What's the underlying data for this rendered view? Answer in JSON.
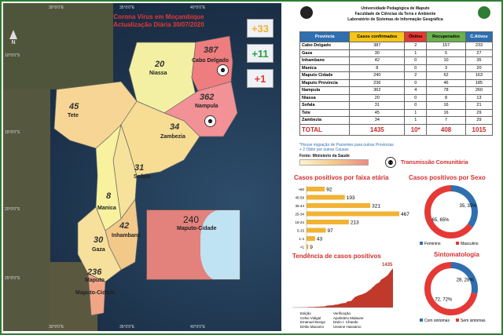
{
  "map": {
    "title_line1": "Corona Vírus em Moçambique",
    "title_line2": "Actualização Diária 30/07/2020",
    "changes": [
      {
        "value": "+33",
        "color": "#f2b233"
      },
      {
        "value": "+11",
        "color": "#2e9e44"
      },
      {
        "value": "+1",
        "color": "#e53935"
      }
    ],
    "provinces": [
      {
        "name": "Niassa",
        "count": "20",
        "color": "#f3f0a3"
      },
      {
        "name": "Cabo Delgado",
        "count": "387",
        "color": "#ef7d7f"
      },
      {
        "name": "Nampula",
        "count": "362",
        "color": "#f29196"
      },
      {
        "name": "Tete",
        "count": "45",
        "color": "#f7d594"
      },
      {
        "name": "Zambezia",
        "count": "34",
        "color": "#f7dd94"
      },
      {
        "name": "Sofala",
        "count": "31",
        "color": "#f6e29b"
      },
      {
        "name": "Manica",
        "count": "8",
        "color": "#f8f29f"
      },
      {
        "name": "Inhambane",
        "count": "42",
        "color": "#f3c98a"
      },
      {
        "name": "Gaza",
        "count": "30",
        "color": "#f6e09b"
      },
      {
        "name": "Maputo",
        "count": "236",
        "color": "#f2a585"
      },
      {
        "name": "Maputo-Cidade",
        "count": "240",
        "color": "#e3817c"
      }
    ],
    "lat_labels": [
      "10°0'0\"S",
      "15°0'0\"S",
      "20°0'0\"S",
      "25°0'0\"S"
    ],
    "lon_labels": [
      "30°0'0\"E",
      "35°0'0\"E",
      "40°0'0\"E"
    ],
    "compass": "N"
  },
  "header": {
    "line1": "Universidade Pedagógica de Maputo",
    "line2": "Faculdade de Ciências da Terra e Ambiente",
    "line3": "Laboratório de Sistemas de Informação Geográfica"
  },
  "table": {
    "columns": [
      {
        "label": "Província",
        "bg": "#2f6fb0",
        "fg": "#ffffff"
      },
      {
        "label": "Casos confirmados",
        "bg": "#f5c518",
        "fg": "#000000"
      },
      {
        "label": "Óbitos",
        "bg": "#e53935",
        "fg": "#000000"
      },
      {
        "label": "Recuperados",
        "bg": "#6ab04c",
        "fg": "#000000"
      },
      {
        "label": "C.Ativos",
        "bg": "#2f6fb0",
        "fg": "#ffffff"
      }
    ],
    "rows": [
      [
        "Cabo Delgado",
        "387",
        "2",
        "157",
        "233"
      ],
      [
        "Gaza",
        "30",
        "1",
        "5",
        "27"
      ],
      [
        "Inhambane",
        "42",
        "0",
        "10",
        "35"
      ],
      [
        "Manica",
        "8",
        "0",
        "3",
        "20"
      ],
      [
        "Maputo Cidade",
        "240",
        "2",
        "62",
        "163"
      ],
      [
        "Maputo Provincia",
        "236",
        "0",
        "46",
        "185"
      ],
      [
        "Nampula",
        "362",
        "4",
        "78",
        "260"
      ],
      [
        "Niassa",
        "20",
        "0",
        "8",
        "13"
      ],
      [
        "Sofala",
        "31",
        "0",
        "16",
        "21"
      ],
      [
        "Tete",
        "45",
        "1",
        "16",
        "29"
      ],
      [
        "Zambezia",
        "34",
        "1",
        "7",
        "29"
      ]
    ],
    "total": [
      "TOTAL",
      "1435",
      "10*",
      "408",
      "1015"
    ]
  },
  "notes": {
    "note1": "*Houve migração de Pacientes para outras Provincias",
    "note2": "+ 2 Obito por outras Causas",
    "source": "Fonte: Ministerio da Saude",
    "community": "Transmissão Comunitária"
  },
  "age_chart": {
    "title": "Casos positivos por faixa etária",
    "chart_data": {
      "type": "bar",
      "categories": [
        ">60",
        "45-59",
        "35-44",
        "25-34",
        "15-24",
        "5-15",
        "1-4",
        "<1"
      ],
      "values": [
        92,
        193,
        321,
        467,
        213,
        97,
        43,
        9
      ],
      "bar_color": "#f2b233"
    }
  },
  "sex_chart": {
    "title": "Casos positivos por Sexo",
    "chart_data": {
      "type": "pie",
      "labels": [
        "Feminino",
        "Masculino"
      ],
      "values": [
        35.35,
        65.65
      ],
      "display": [
        "35, 35%",
        "65, 65%"
      ],
      "colors": [
        "#2f6fb0",
        "#e53935"
      ]
    }
  },
  "symptom_chart": {
    "title": "Sintomatologia",
    "chart_data": {
      "type": "pie",
      "labels": [
        "Com sintomas",
        "Sem sintomas"
      ],
      "values": [
        28.28,
        72.72
      ],
      "display": [
        "28, 28%",
        "72, 72%"
      ],
      "colors": [
        "#2f6fb0",
        "#e53935"
      ]
    }
  },
  "trend_chart": {
    "title": "Tendência de casos positivos",
    "last_value_label": "1435",
    "chart_data": {
      "type": "area",
      "y": [
        1,
        1,
        1,
        2,
        3,
        5,
        7,
        8,
        8,
        10,
        10,
        10,
        10,
        17,
        20,
        21,
        21,
        21,
        22,
        28,
        29,
        31,
        33,
        35,
        39,
        39,
        41,
        46,
        65,
        70,
        76,
        79,
        81,
        82,
        91,
        104,
        107,
        112,
        119,
        137,
        146,
        156,
        162,
        164,
        168,
        213,
        227,
        233,
        244,
        254,
        316,
        352,
        398,
        409,
        435,
        447,
        462,
        472,
        489,
        509,
        526,
        553,
        584,
        616,
        654,
        683,
        734,
        765,
        816,
        849,
        883,
        903,
        938,
        1012,
        1040,
        1071,
        1089,
        1135,
        1157,
        1207,
        1268,
        1330,
        1383,
        1435
      ],
      "color": "#c0392b"
    }
  },
  "credits": {
    "left_title": "Edição",
    "left_names": [
      "Celso Vidigal",
      "Emanuel Bongo",
      "Delito Macamo"
    ],
    "right_title": "Verificação",
    "right_names": [
      "Apolinário Malaune",
      "Dario I. Chande",
      "Ussene Hassamo"
    ]
  }
}
